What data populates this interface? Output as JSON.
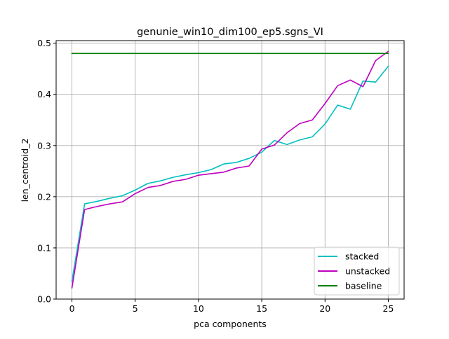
{
  "chart_data": {
    "type": "line",
    "title": "genunie_win10_dim100_ep5.sgns_VI",
    "xlabel": "pca components",
    "ylabel": "len_centroid_2",
    "xlim": [
      -1.25,
      26.25
    ],
    "ylim": [
      0.0,
      0.505
    ],
    "x_ticks": [
      0,
      5,
      10,
      15,
      20,
      25
    ],
    "y_ticks": [
      0.0,
      0.1,
      0.2,
      0.3,
      0.4,
      0.5
    ],
    "x_tick_labels": [
      "0",
      "5",
      "10",
      "15",
      "20",
      "25"
    ],
    "y_tick_labels": [
      "0.0",
      "0.1",
      "0.2",
      "0.3",
      "0.4",
      "0.5"
    ],
    "grid": true,
    "legend_position": "lower-right",
    "series": [
      {
        "name": "stacked",
        "color": "#00bfbf",
        "x": [
          0,
          1,
          2,
          3,
          4,
          5,
          6,
          7,
          8,
          9,
          10,
          11,
          12,
          13,
          14,
          15,
          16,
          17,
          18,
          19,
          20,
          21,
          22,
          23,
          24,
          25
        ],
        "values": [
          0.035,
          0.186,
          0.191,
          0.197,
          0.202,
          0.213,
          0.226,
          0.231,
          0.238,
          0.243,
          0.247,
          0.253,
          0.264,
          0.267,
          0.275,
          0.287,
          0.31,
          0.302,
          0.311,
          0.317,
          0.342,
          0.379,
          0.371,
          0.426,
          0.424,
          0.455
        ]
      },
      {
        "name": "unstacked",
        "color": "#bf00bf",
        "x": [
          0,
          1,
          2,
          3,
          4,
          5,
          6,
          7,
          8,
          9,
          10,
          11,
          12,
          13,
          14,
          15,
          16,
          17,
          18,
          19,
          20,
          21,
          22,
          23,
          24,
          25
        ],
        "values": [
          0.022,
          0.175,
          0.181,
          0.186,
          0.19,
          0.206,
          0.218,
          0.222,
          0.23,
          0.234,
          0.242,
          0.245,
          0.248,
          0.256,
          0.26,
          0.293,
          0.301,
          0.325,
          0.343,
          0.35,
          0.382,
          0.417,
          0.428,
          0.415,
          0.466,
          0.484
        ]
      },
      {
        "name": "baseline",
        "color": "#008000",
        "x": [
          0,
          25
        ],
        "values": [
          0.48,
          0.48
        ]
      }
    ]
  }
}
